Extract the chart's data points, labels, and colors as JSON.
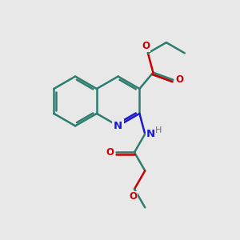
{
  "bg_color": "#e8e8e8",
  "bond_color": "#2d7d6e",
  "n_color": "#1a1acc",
  "o_color": "#cc0000",
  "h_color": "#707070",
  "line_width": 1.8,
  "figsize": [
    3.0,
    3.0
  ],
  "dpi": 100,
  "xlim": [
    0,
    10
  ],
  "ylim": [
    0,
    10
  ]
}
